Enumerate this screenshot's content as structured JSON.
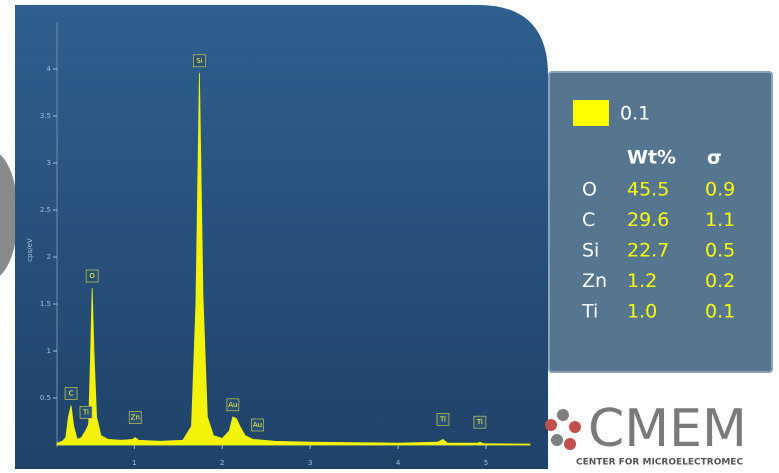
{
  "chart_data": {
    "type": "area",
    "y_label": "cps/eV",
    "color": "#f2f20a",
    "x": [
      0.12,
      0.18,
      0.22,
      0.25,
      0.28,
      0.31,
      0.35,
      0.4,
      0.45,
      0.48,
      0.5,
      0.52,
      0.54,
      0.57,
      0.62,
      0.7,
      0.85,
      0.98,
      1.01,
      1.05,
      1.3,
      1.55,
      1.65,
      1.7,
      1.74,
      1.78,
      1.83,
      1.9,
      2.0,
      2.08,
      2.12,
      2.16,
      2.2,
      2.26,
      2.35,
      2.6,
      3.0,
      3.5,
      4.0,
      4.45,
      4.51,
      4.56,
      4.9,
      4.93,
      4.97,
      5.5
    ],
    "values": [
      0.02,
      0.04,
      0.08,
      0.3,
      0.42,
      0.2,
      0.06,
      0.08,
      0.16,
      0.22,
      0.9,
      1.67,
      1.0,
      0.3,
      0.1,
      0.06,
      0.05,
      0.06,
      0.08,
      0.05,
      0.04,
      0.05,
      0.2,
      1.5,
      3.96,
      1.6,
      0.3,
      0.1,
      0.07,
      0.15,
      0.3,
      0.28,
      0.2,
      0.1,
      0.06,
      0.04,
      0.03,
      0.025,
      0.02,
      0.03,
      0.06,
      0.02,
      0.02,
      0.03,
      0.015,
      0.01
    ],
    "xlim": [
      0.12,
      5.5
    ],
    "ylim": [
      0,
      4.5
    ],
    "xticks": [
      1,
      2,
      3,
      4,
      5
    ],
    "yticks": [
      0.5,
      1,
      1.5,
      2,
      2.5,
      3,
      3.5,
      4
    ],
    "annotations": [
      {
        "text": "C",
        "x": 0.28
      },
      {
        "text": "Ti",
        "x": 0.45
      },
      {
        "text": "O",
        "x": 0.52
      },
      {
        "text": "Zn",
        "x": 1.01
      },
      {
        "text": "Si",
        "x": 1.74
      },
      {
        "text": "Au",
        "x": 2.12
      },
      {
        "text": "Au",
        "x": 2.4
      },
      {
        "text": "Ti",
        "x": 4.51
      },
      {
        "text": "Ti",
        "x": 4.93
      }
    ]
  },
  "results": {
    "legend": "0.1",
    "legend_color": "#ffff00",
    "headers": [
      "Wt%",
      "σ"
    ],
    "rows": [
      [
        "O",
        "45.5",
        "0.9"
      ],
      [
        "C",
        "29.6",
        "1.1"
      ],
      [
        "Si",
        "22.7",
        "0.5"
      ],
      [
        "Zn",
        "1.2",
        "0.2"
      ],
      [
        "Ti",
        "1.0",
        "0.1"
      ]
    ]
  },
  "logo": {
    "name": "CMEM",
    "subtitle": "CENTER FOR MICROELECTROMEC"
  }
}
